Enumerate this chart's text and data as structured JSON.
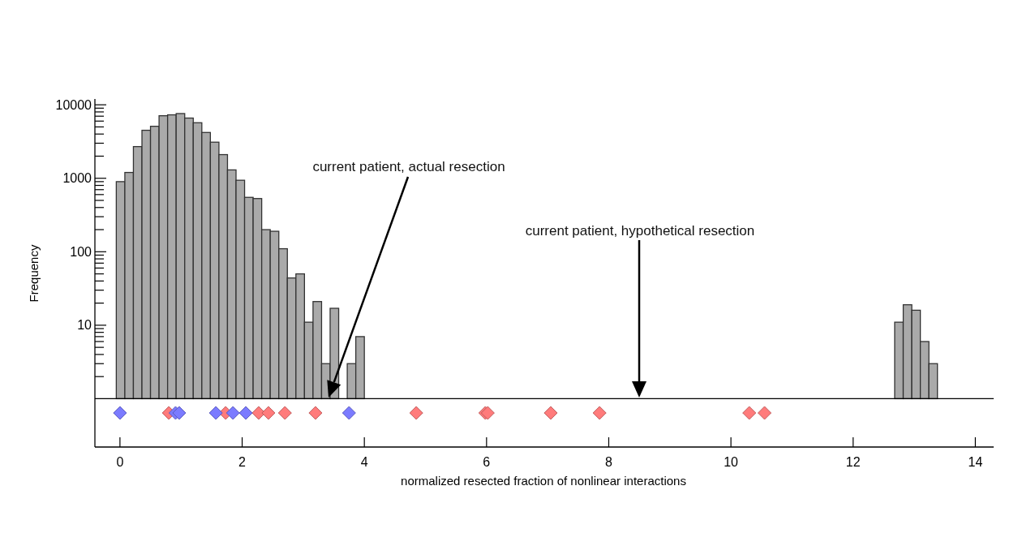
{
  "chart_data": {
    "type": "histogram",
    "ylabel": "Frequency",
    "xlabel": "normalized resected fraction of nonlinear interactions",
    "log": "y",
    "marker": "diamond",
    "xlim": [
      -0.41,
      14.3
    ],
    "ylim": [
      0.22,
      12000
    ],
    "xticks": [
      0,
      2,
      4,
      6,
      8,
      10,
      12,
      14
    ],
    "yticks": [
      {
        "value": 2,
        "label": null
      },
      {
        "value": 3,
        "label": null
      },
      {
        "value": 4,
        "label": null
      },
      {
        "value": 5,
        "label": null
      },
      {
        "value": 6,
        "label": null
      },
      {
        "value": 7,
        "label": null
      },
      {
        "value": 8,
        "label": null
      },
      {
        "value": 9,
        "label": null
      },
      10,
      {
        "value": 20,
        "label": null
      },
      {
        "value": 30,
        "label": null
      },
      {
        "value": 40,
        "label": null
      },
      {
        "value": 50,
        "label": null
      },
      {
        "value": 60,
        "label": null
      },
      {
        "value": 70,
        "label": null
      },
      {
        "value": 80,
        "label": null
      },
      {
        "value": 90,
        "label": null
      },
      100,
      {
        "value": 200,
        "label": null
      },
      {
        "value": 300,
        "label": null
      },
      {
        "value": 400,
        "label": null
      },
      {
        "value": 500,
        "label": null
      },
      {
        "value": 600,
        "label": null
      },
      {
        "value": 700,
        "label": null
      },
      {
        "value": 800,
        "label": null
      },
      {
        "value": 900,
        "label": null
      },
      1000,
      {
        "value": 2000,
        "label": null
      },
      {
        "value": 3000,
        "label": null
      },
      {
        "value": 4000,
        "label": null
      },
      {
        "value": 5000,
        "label": null
      },
      {
        "value": 6000,
        "label": null
      },
      {
        "value": 7000,
        "label": null
      },
      {
        "value": 8000,
        "label": null
      },
      {
        "value": 9000,
        "label": null
      },
      10000
    ],
    "ref_lines": [
      {
        "axis": "y",
        "value": 1,
        "color": "#000000"
      }
    ],
    "series": [
      {
        "color": "#aaaaaa",
        "bins": [
          -0.06,
          0.08,
          0.22,
          0.36,
          0.5,
          0.64,
          0.78,
          0.92,
          1.06,
          1.2,
          1.34,
          1.48,
          1.62,
          1.76,
          1.9,
          2.04,
          2.18,
          2.32,
          2.46,
          2.6,
          2.74,
          2.88,
          3.02,
          3.16,
          3.3,
          3.44,
          3.58
        ],
        "values": [
          900,
          1200,
          2700,
          4500,
          5100,
          7100,
          7300,
          7600,
          6600,
          5700,
          4200,
          3100,
          2100,
          1300,
          940,
          550,
          530,
          200,
          190,
          110,
          44,
          50,
          11,
          21,
          3,
          17
        ]
      },
      {
        "color": "#aaaaaa",
        "bins": [
          3.72,
          3.86,
          4.0
        ],
        "values": [
          3,
          7
        ]
      },
      {
        "color": "#aaaaaa",
        "bins": [
          12.68,
          12.82,
          12.96,
          13.1,
          13.24,
          13.38
        ],
        "values": [
          11,
          19,
          16,
          6,
          3
        ]
      },
      {
        "type": "scatter",
        "color": "#ff7b7b",
        "x": [
          0.8,
          1.73,
          2.27,
          2.43,
          2.7,
          3.2,
          4.85,
          5.98,
          6.02,
          7.05,
          7.85,
          10.3,
          10.55
        ],
        "values": [
          0.64,
          0.64,
          0.64,
          0.64,
          0.64,
          0.64,
          0.64,
          0.64,
          0.64,
          0.64,
          0.64,
          0.64,
          0.64
        ]
      },
      {
        "type": "scatter",
        "color": "#7b7bff",
        "x": [
          0,
          0.91,
          0.97,
          1.57,
          1.85,
          2.06,
          3.75
        ],
        "values": [
          0.64,
          0.64,
          0.64,
          0.64,
          0.64,
          0.64,
          0.64
        ]
      }
    ],
    "annotations": [
      "current patient, actual resection",
      "current patient, hypothetical resection"
    ]
  }
}
